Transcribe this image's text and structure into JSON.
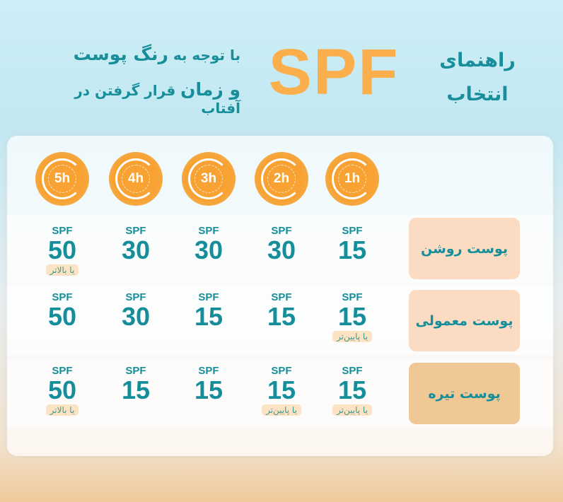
{
  "header": {
    "title": "راهنمای انتخاب",
    "brand": "SPF",
    "subtitle_line1_pre": "با توجه به",
    "subtitle_line1_bold": "رنگ پوست",
    "subtitle_line2_bold": "و زمان",
    "subtitle_line2_post": "قرار گرفتن در آفتاب"
  },
  "colors": {
    "teal": "#168e9a",
    "orange": "#fbae4c",
    "light_skin_bg": "#fbdcc3",
    "dark_skin_bg": "#efc896"
  },
  "hours": [
    "1h",
    "2h",
    "3h",
    "4h",
    "5h"
  ],
  "unit_label": "SPF",
  "rows": [
    {
      "skin": "پوست روشن",
      "values": [
        "15",
        "30",
        "30",
        "30",
        "50"
      ],
      "notes": [
        "",
        "",
        "",
        "",
        "یا بالاتر"
      ]
    },
    {
      "skin": "پوست معمولی",
      "values": [
        "15",
        "15",
        "15",
        "30",
        "50"
      ],
      "notes": [
        "یا پایین‌تر",
        "",
        "",
        "",
        ""
      ]
    },
    {
      "skin": "پوست تیره",
      "values": [
        "15",
        "15",
        "15",
        "15",
        "50"
      ],
      "notes": [
        "یا پایین‌تر",
        "یا پایین‌تر",
        "",
        "",
        "یا بالاتر"
      ]
    }
  ]
}
